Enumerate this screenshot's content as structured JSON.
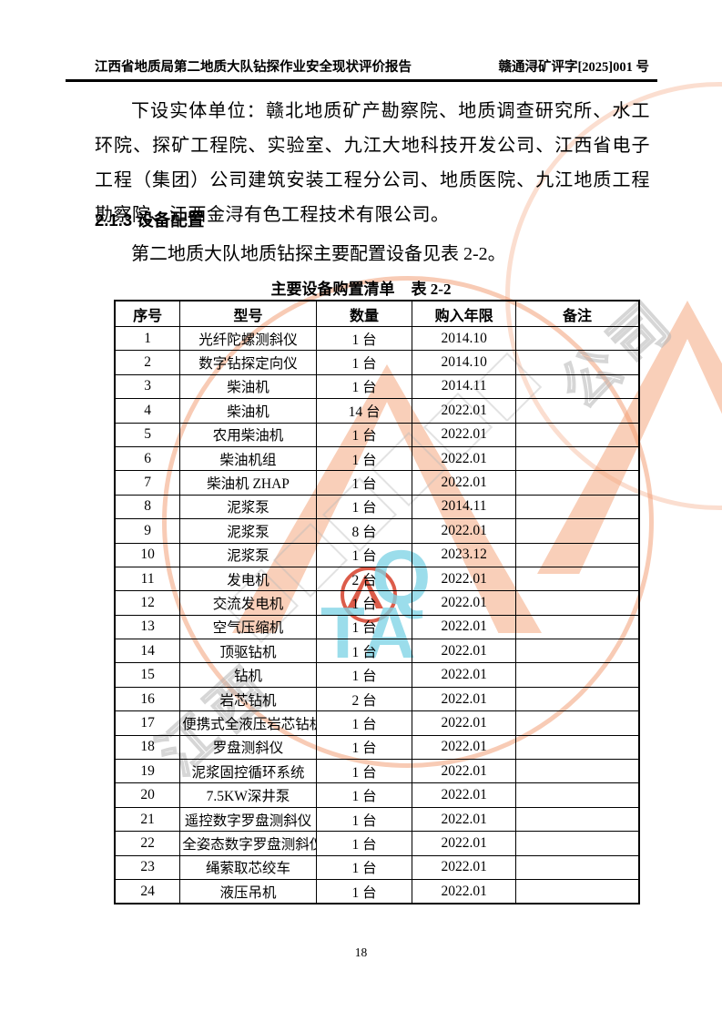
{
  "header": {
    "left_title": "江西省地质局第二地质大队钻探作业安全现状评价报告",
    "right_doc_no": "赣通浔矿评字[2025]001 号"
  },
  "content": {
    "paragraph": "下设实体单位：赣北地质矿产勘察院、地质调查研究所、水工环院、探矿工程院、实验室、九江大地科技开发公司、江西省电子工程（集团）公司建筑安装工程分公司、地质医院、九江地质工程勘察院、江西金浔有色工程技术有限公司。",
    "section_heading": "2.1.3 设备配置",
    "lead_sentence": "第二地质大队地质钻探主要配置设备见表 2-2。"
  },
  "table": {
    "title": "主要设备购置清单",
    "title_tag": "表 2-2",
    "columns": [
      "序号",
      "型号",
      "数量",
      "购入年限",
      "备注"
    ],
    "rows": [
      [
        "1",
        "光纤陀螺测斜仪",
        "1 台",
        "2014.10",
        ""
      ],
      [
        "2",
        "数字钻探定向仪",
        "1 台",
        "2014.10",
        ""
      ],
      [
        "3",
        "柴油机",
        "1 台",
        "2014.11",
        ""
      ],
      [
        "4",
        "柴油机",
        "14 台",
        "2022.01",
        ""
      ],
      [
        "5",
        "农用柴油机",
        "1 台",
        "2022.01",
        ""
      ],
      [
        "6",
        "柴油机组",
        "1 台",
        "2022.01",
        ""
      ],
      [
        "7",
        "柴油机 ZHAP",
        "1 台",
        "2022.01",
        ""
      ],
      [
        "8",
        "泥浆泵",
        "1 台",
        "2014.11",
        ""
      ],
      [
        "9",
        "泥浆泵",
        "8 台",
        "2022.01",
        ""
      ],
      [
        "10",
        "泥浆泵",
        "1 台",
        "2023.12",
        ""
      ],
      [
        "11",
        "发电机",
        "2 台",
        "2022.01",
        ""
      ],
      [
        "12",
        "交流发电机",
        "1 台",
        "2022.01",
        ""
      ],
      [
        "13",
        "空气压缩机",
        "1 台",
        "2022.01",
        ""
      ],
      [
        "14",
        "顶驱钻机",
        "1 台",
        "2022.01",
        ""
      ],
      [
        "15",
        "钻机",
        "1 台",
        "2022.01",
        ""
      ],
      [
        "16",
        "岩芯钻机",
        "2 台",
        "2022.01",
        ""
      ],
      [
        "17",
        "便携式全液压岩芯钻机",
        "1 台",
        "2022.01",
        ""
      ],
      [
        "18",
        "罗盘测斜仪",
        "1 台",
        "2022.01",
        ""
      ],
      [
        "19",
        "泥浆固控循环系统",
        "1 台",
        "2022.01",
        ""
      ],
      [
        "20",
        "7.5KW深井泵",
        "1 台",
        "2022.01",
        ""
      ],
      [
        "21",
        "遥控数字罗盘测斜仪",
        "1 台",
        "2022.01",
        ""
      ],
      [
        "22",
        "全姿态数字罗盘测斜仪",
        "1 台",
        "2022.01",
        ""
      ],
      [
        "23",
        "绳萦取芯绞车",
        "1 台",
        "2022.01",
        ""
      ],
      [
        "24",
        "液压吊机",
        "1 台",
        "2022.01",
        ""
      ]
    ]
  },
  "footer": {
    "page_number": "18"
  },
  "watermark": {
    "fragment_top_right": "公司",
    "fragment_bottom_left": "江西",
    "cyan_letter_q": "Q",
    "cyan_letters_ta": "TA",
    "colors": {
      "orange": "#f2a37c",
      "red": "#d6402a",
      "cyan": "#7fd4e6",
      "gray_outline": "#b4b4b4"
    }
  }
}
